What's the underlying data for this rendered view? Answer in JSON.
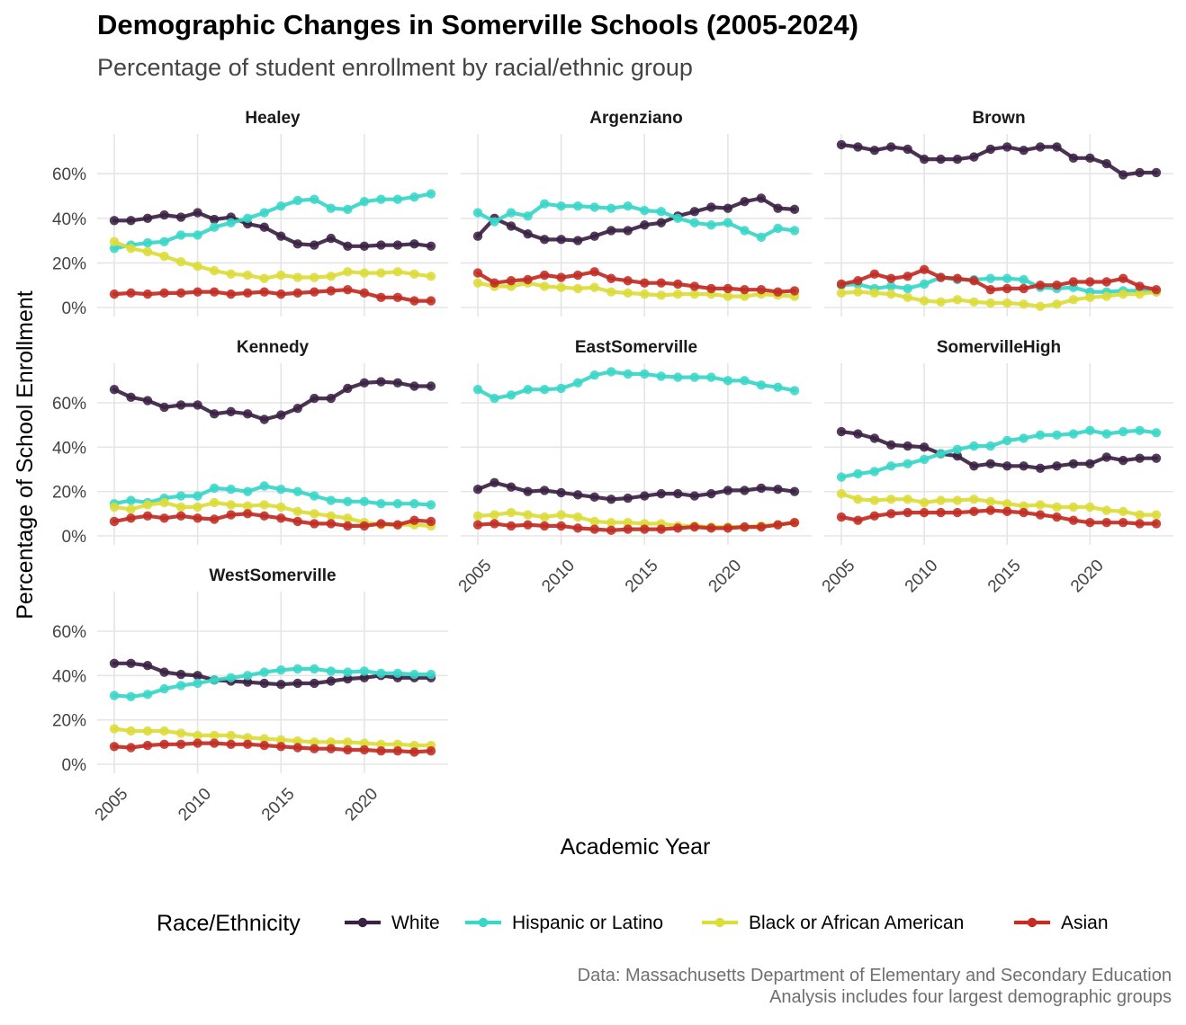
{
  "title": "Demographic Changes in Somerville Schools (2005-2024)",
  "subtitle": "Percentage of student enrollment by racial/ethnic group",
  "caption": {
    "line1": "Data: Massachusetts Department of Elementary and Secondary Education",
    "line2": "Analysis includes four largest demographic groups"
  },
  "colors": {
    "White": "#3b2244",
    "Hispanic or Latino": "#3ad6c8",
    "Black or African American": "#dcdc3a",
    "Asian": "#c22d24",
    "grid": "#e5e5e5"
  },
  "chart_data": {
    "type": "line",
    "xlabel": "Academic Year",
    "ylabel": "Percentage of School Enrollment",
    "x": [
      2005,
      2006,
      2007,
      2008,
      2009,
      2010,
      2011,
      2012,
      2013,
      2014,
      2015,
      2016,
      2017,
      2018,
      2019,
      2020,
      2021,
      2022,
      2023,
      2024
    ],
    "xlim": [
      2005,
      2024
    ],
    "xticks": [
      "2005",
      "2010",
      "2015",
      "2020"
    ],
    "ylim": [
      0,
      75
    ],
    "yticks": [
      "0%",
      "20%",
      "40%",
      "60%"
    ],
    "grid": true,
    "legend": {
      "title": "Race/Ethnicity",
      "position": "bottom",
      "entries": [
        "White",
        "Hispanic or Latino",
        "Black or African American",
        "Asian"
      ]
    },
    "facets": [
      {
        "name": "Healey",
        "series": [
          {
            "name": "White",
            "values": [
              39,
              39,
              40,
              41.5,
              40.5,
              42.5,
              39.5,
              40.5,
              37.5,
              36,
              32,
              28.5,
              28,
              31,
              27.5,
              27.5,
              28,
              28,
              28.5,
              27.5
            ]
          },
          {
            "name": "Hispanic or Latino",
            "values": [
              26.5,
              28,
              29,
              29.5,
              32.5,
              32.5,
              36,
              38,
              40,
              42.5,
              45.5,
              48,
              48.5,
              44.5,
              44,
              47.5,
              48.5,
              48.5,
              49.5,
              51
            ]
          },
          {
            "name": "Black or African American",
            "values": [
              29.5,
              26.5,
              25,
              23,
              20.5,
              18.5,
              16.5,
              15,
              14.5,
              13,
              14.5,
              13.5,
              13.5,
              14,
              16,
              15.5,
              15.5,
              16,
              15,
              14
            ]
          },
          {
            "name": "Asian",
            "values": [
              6,
              6.5,
              6,
              6.5,
              6.5,
              7,
              7,
              6,
              6.5,
              7,
              6,
              6.5,
              7,
              7.5,
              8,
              6.5,
              4.5,
              4.5,
              3,
              3
            ]
          }
        ]
      },
      {
        "name": "Argenziano",
        "series": [
          {
            "name": "White",
            "values": [
              32,
              40,
              36.5,
              33,
              30.5,
              30.5,
              30,
              32,
              34.5,
              34.5,
              37,
              38,
              41,
              43,
              45,
              44.5,
              47.5,
              49,
              44.5,
              44
            ]
          },
          {
            "name": "Hispanic or Latino",
            "values": [
              42.5,
              38.5,
              42.5,
              41,
              46.5,
              45.5,
              45.5,
              45,
              44.5,
              45.5,
              43.5,
              43,
              40,
              38,
              37,
              38,
              34.5,
              31.5,
              35.5,
              34.5
            ]
          },
          {
            "name": "Black or African American",
            "values": [
              11,
              9.5,
              9.5,
              11,
              9.5,
              9,
              8.5,
              9,
              7,
              6.5,
              6,
              5.5,
              6,
              6,
              6,
              5,
              5,
              6,
              5.5,
              5
            ]
          },
          {
            "name": "Asian",
            "values": [
              15.5,
              11,
              12,
              12.5,
              14.5,
              13.5,
              14.5,
              16,
              13,
              12,
              11,
              11,
              10.5,
              9.5,
              8.5,
              8.5,
              8,
              8,
              7,
              7.5
            ]
          }
        ]
      },
      {
        "name": "Brown",
        "series": [
          {
            "name": "White",
            "values": [
              73,
              72,
              70.5,
              72,
              71,
              66.5,
              66.5,
              66.5,
              67.5,
              71,
              72,
              70.5,
              72,
              72,
              67,
              67,
              64.5,
              59.5,
              60.5,
              60.5
            ]
          },
          {
            "name": "Hispanic or Latino",
            "values": [
              10,
              10.5,
              8.5,
              9.5,
              8.5,
              10.5,
              13.5,
              12.5,
              12.5,
              13,
              13,
              12.5,
              9,
              8.5,
              9,
              7,
              7,
              7.5,
              7.5,
              7
            ]
          },
          {
            "name": "Black or African American",
            "values": [
              6.5,
              7,
              6.5,
              6,
              4.5,
              3,
              2.5,
              3.5,
              2.5,
              2,
              2,
              1.5,
              0.5,
              1.5,
              3.5,
              4.5,
              5,
              6,
              6,
              7
            ]
          },
          {
            "name": "Asian",
            "values": [
              10.5,
              12,
              15,
              13,
              14,
              17,
              13.5,
              13,
              12,
              8,
              8.5,
              8.5,
              10,
              10,
              11.5,
              11.5,
              11.5,
              13,
              9.5,
              8
            ]
          }
        ]
      },
      {
        "name": "Kennedy",
        "series": [
          {
            "name": "White",
            "values": [
              66,
              62.5,
              61,
              58,
              59,
              59,
              55,
              56,
              55,
              52.5,
              54.5,
              57.5,
              62,
              62,
              66.5,
              69,
              69.5,
              69,
              67.5,
              67.5
            ]
          },
          {
            "name": "Hispanic or Latino",
            "values": [
              14.5,
              16,
              15,
              17,
              18,
              18,
              21.5,
              21,
              20,
              22.5,
              21,
              20,
              18,
              16,
              15.5,
              15.5,
              14.5,
              14.5,
              14.5,
              14
            ]
          },
          {
            "name": "Black or African American",
            "values": [
              13,
              12,
              14,
              15,
              13,
              13,
              15,
              14,
              13.5,
              14,
              13,
              11,
              10,
              9,
              8,
              6,
              5,
              5,
              5,
              4.5
            ]
          },
          {
            "name": "Asian",
            "values": [
              6.5,
              8,
              9,
              8,
              9,
              8,
              7.5,
              9.5,
              10,
              9,
              8,
              6.5,
              5.5,
              5.5,
              4.5,
              4.5,
              5.5,
              5,
              7,
              6.5
            ]
          }
        ]
      },
      {
        "name": "EastSomerville",
        "series": [
          {
            "name": "White",
            "values": [
              21,
              24,
              22,
              20,
              20.5,
              19.5,
              18.5,
              17.5,
              16.5,
              17,
              18,
              19,
              19,
              18,
              19,
              20.5,
              20.5,
              21.5,
              21,
              20
            ]
          },
          {
            "name": "Hispanic or Latino",
            "values": [
              66,
              62,
              63.5,
              66,
              66,
              66.5,
              69,
              72.5,
              74,
              73,
              73,
              72,
              71.5,
              71.5,
              71.5,
              70,
              70,
              68,
              67,
              65.5
            ]
          },
          {
            "name": "Black or African American",
            "values": [
              9,
              9.5,
              10.5,
              9.5,
              8.5,
              9.5,
              8.5,
              6.5,
              6,
              6,
              5.5,
              5.5,
              4.5,
              4.5,
              4,
              4,
              4,
              4.5,
              5,
              6
            ]
          },
          {
            "name": "Asian",
            "values": [
              5,
              5.5,
              4.5,
              5,
              4.5,
              4.5,
              3.5,
              3,
              2.5,
              3,
              3,
              3,
              3.5,
              4,
              3.5,
              3.5,
              4,
              4,
              5,
              6
            ]
          }
        ]
      },
      {
        "name": "SomervilleHigh",
        "series": [
          {
            "name": "White",
            "values": [
              47,
              46,
              44,
              41,
              40.5,
              40,
              37,
              36,
              31.5,
              32.5,
              31.5,
              31.5,
              30.5,
              31.5,
              32.5,
              32.5,
              35.5,
              34,
              35,
              35
            ]
          },
          {
            "name": "Hispanic or Latino",
            "values": [
              26.5,
              28,
              29,
              31.5,
              32.5,
              34.5,
              37,
              39,
              40.5,
              40.5,
              43,
              44,
              45.5,
              45.5,
              46,
              47.5,
              46,
              47,
              47.5,
              46.5
            ]
          },
          {
            "name": "Black or African American",
            "values": [
              19,
              16.5,
              16,
              16.5,
              16.5,
              15,
              16,
              16,
              16.5,
              15.5,
              14.5,
              13.5,
              14,
              13,
              13,
              13,
              11.5,
              11,
              9.5,
              9.5
            ]
          },
          {
            "name": "Asian",
            "values": [
              8.5,
              7,
              9,
              10,
              10.5,
              10.5,
              10.5,
              10.5,
              11,
              11.5,
              11,
              10.5,
              9.5,
              8.5,
              7,
              6,
              6,
              6,
              5.5,
              5.5
            ]
          }
        ]
      },
      {
        "name": "WestSomerville",
        "series": [
          {
            "name": "White",
            "values": [
              45.5,
              45.5,
              44.5,
              41.5,
              40.5,
              40,
              38,
              37.5,
              37,
              36.5,
              36,
              36.5,
              36.5,
              37.5,
              38.5,
              39,
              40,
              39,
              39,
              39
            ]
          },
          {
            "name": "Hispanic or Latino",
            "values": [
              31,
              30.5,
              31.5,
              34,
              35.5,
              36.5,
              38,
              39,
              40,
              41.5,
              42.5,
              43,
              43,
              42,
              41.5,
              42,
              41,
              41,
              40.5,
              40.5
            ]
          },
          {
            "name": "Black or African American",
            "values": [
              16,
              15,
              15,
              15,
              14,
              13,
              13,
              13,
              12,
              11.5,
              11,
              10.5,
              10,
              10,
              10,
              9.5,
              9,
              9,
              8.5,
              8.5
            ]
          },
          {
            "name": "Asian",
            "values": [
              8,
              7.5,
              8.5,
              9,
              9,
              9.5,
              9.5,
              9,
              9,
              8.5,
              8,
              7.5,
              7,
              7,
              6.5,
              6.5,
              6,
              6,
              5.5,
              6
            ]
          }
        ]
      }
    ]
  }
}
